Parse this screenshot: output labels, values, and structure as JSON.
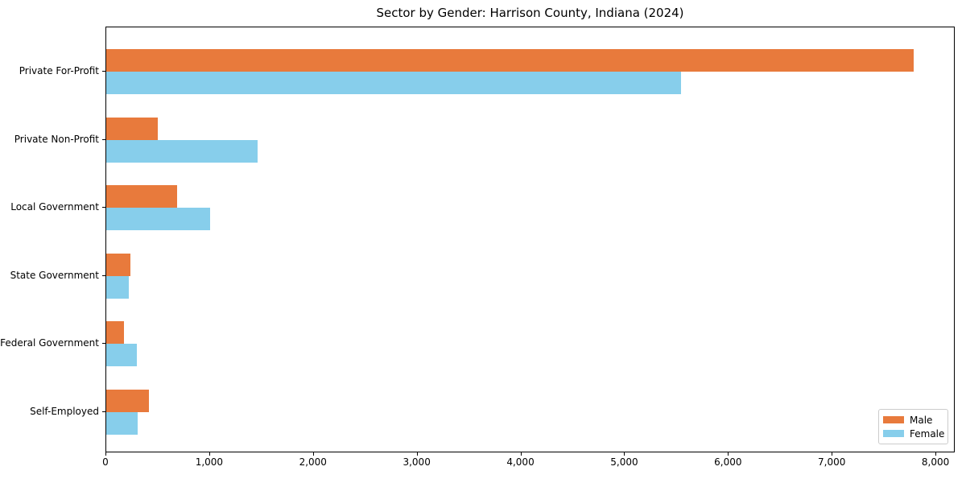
{
  "chart_data": {
    "type": "bar",
    "orientation": "horizontal",
    "title": "Sector by Gender: Harrison County, Indiana (2024)",
    "categories": [
      "Private For-Profit",
      "Private Non-Profit",
      "Local Government",
      "State Government",
      "Federal Government",
      "Self-Employed"
    ],
    "series": [
      {
        "name": "Male",
        "color": "#e87a3c",
        "values": [
          7780,
          500,
          685,
          235,
          170,
          415
        ]
      },
      {
        "name": "Female",
        "color": "#87ceeb",
        "values": [
          5540,
          1460,
          1000,
          220,
          295,
          300
        ]
      }
    ],
    "xlabel": "",
    "ylabel": "",
    "xlim": [
      0,
      8170
    ],
    "x_ticks": [
      0,
      1000,
      2000,
      3000,
      4000,
      5000,
      6000,
      7000,
      8000
    ],
    "x_tick_labels": [
      "0",
      "1,000",
      "2,000",
      "3,000",
      "4,000",
      "5,000",
      "6,000",
      "7,000",
      "8,000"
    ],
    "grid": false,
    "legend": {
      "position": "lower right",
      "entries": [
        "Male",
        "Female"
      ]
    }
  }
}
